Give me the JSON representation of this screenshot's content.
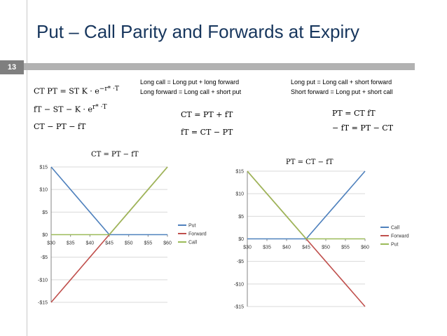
{
  "slide": {
    "title": "Put – Call Parity and Forwards at Expiry",
    "number": "13"
  },
  "notes": {
    "left": [
      "Long call = Long put + long forward",
      "Long forward = Long call + short put"
    ],
    "right": [
      "Long put = Long call + short forward",
      "Short forward = Long put + short call"
    ]
  },
  "equations": {
    "e1": "CT   PT = ST   K · e",
    "e1_sup": "−r* ·T",
    "e2": "fT − ST − K · e",
    "e2_sup": "r* ·T",
    "e3": "CT − PT − fT",
    "e4": "CT = PT + fT",
    "e5": "fT = CT − PT",
    "e6": "PT = CT   fT",
    "e7": "− fT = PT − CT"
  },
  "colors": {
    "put": "#4f81bd",
    "forward": "#c0504d",
    "call": "#9bbb59",
    "axis": "#868686",
    "grid": "#d9d9d9"
  },
  "chart_data": [
    {
      "type": "line",
      "title": "CT = PT − fT",
      "x": [
        30,
        35,
        40,
        45,
        50,
        55,
        60
      ],
      "xticks": [
        "$30",
        "$35",
        "$40",
        "$45",
        "$50",
        "$55",
        "$60"
      ],
      "yticks": [
        "$15",
        "$10",
        "$5",
        "$0",
        "-$5",
        "-$10",
        "-$15"
      ],
      "ylim": [
        -15,
        15
      ],
      "grid": true,
      "legend_position": "right",
      "series": [
        {
          "name": "Put",
          "values": [
            15,
            10,
            5,
            0,
            0,
            0,
            0
          ],
          "color": "#4f81bd"
        },
        {
          "name": "Forward",
          "values": [
            -15,
            -10,
            -5,
            0,
            5,
            10,
            15
          ],
          "color": "#c0504d"
        },
        {
          "name": "Call",
          "values": [
            0,
            0,
            0,
            0,
            5,
            10,
            15
          ],
          "color": "#9bbb59"
        }
      ]
    },
    {
      "type": "line",
      "title": "PT = CT − fT",
      "x": [
        30,
        35,
        40,
        45,
        50,
        55,
        60
      ],
      "xticks": [
        "$30",
        "$35",
        "$40",
        "$45",
        "$50",
        "$55",
        "$60"
      ],
      "yticks": [
        "$15",
        "$10",
        "$5",
        "$0",
        "-$5",
        "-$10",
        "-$15"
      ],
      "ylim": [
        -15,
        15
      ],
      "grid": true,
      "legend_position": "right",
      "series": [
        {
          "name": "Call",
          "values": [
            0,
            0,
            0,
            0,
            5,
            10,
            15
          ],
          "color": "#4f81bd"
        },
        {
          "name": "Forward",
          "values": [
            15,
            10,
            5,
            0,
            -5,
            -10,
            -15
          ],
          "color": "#c0504d"
        },
        {
          "name": "Put",
          "values": [
            15,
            10,
            5,
            0,
            0,
            0,
            0
          ],
          "color": "#9bbb59"
        }
      ]
    }
  ]
}
